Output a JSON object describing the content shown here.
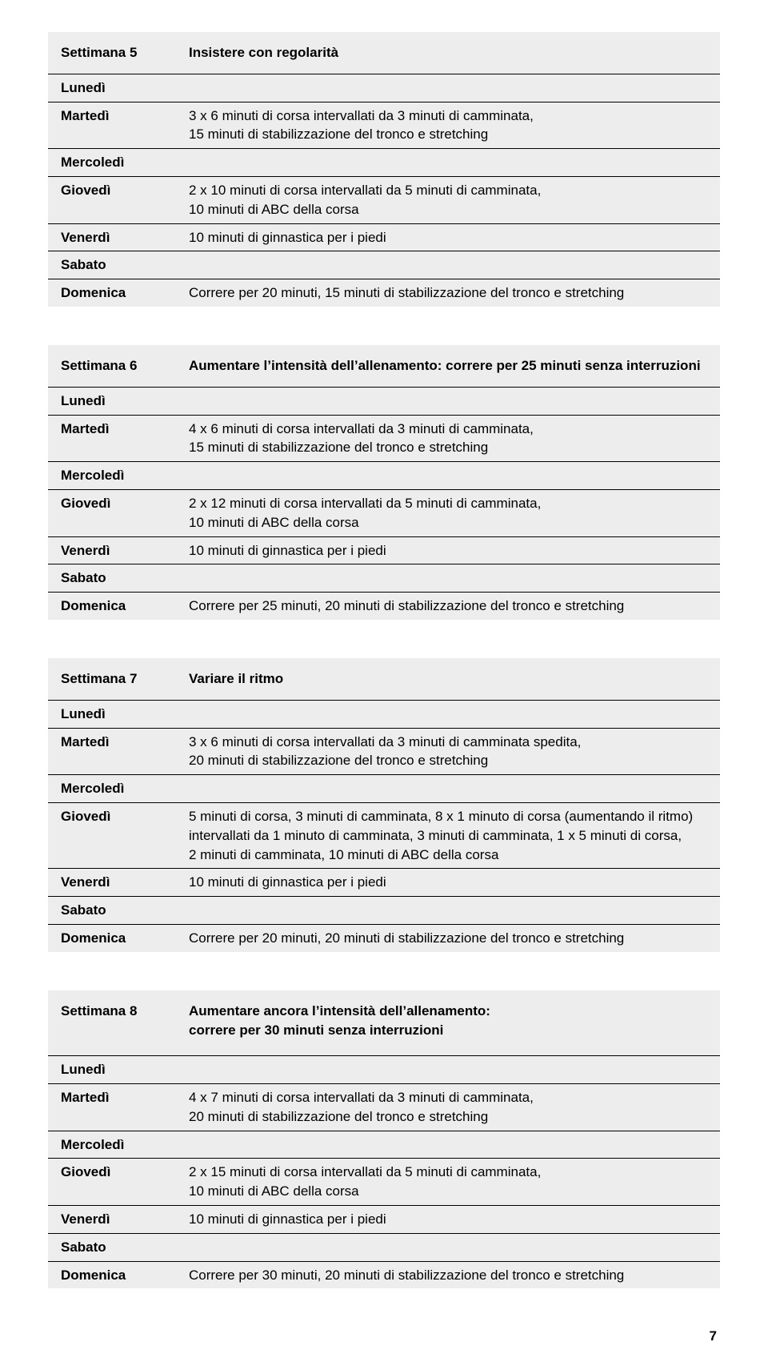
{
  "colors": {
    "background": "#ffffff",
    "block_bg": "#ededed",
    "row_border": "#000000",
    "text": "#000000"
  },
  "typography": {
    "font_family": "Helvetica, Arial, sans-serif",
    "base_fontsize": 17,
    "bold_weight": 700,
    "normal_weight": 400
  },
  "page_number": "7",
  "weeks": [
    {
      "label": "Settimana 5",
      "title": "Insistere con regolarità",
      "days": [
        {
          "name": "Lunedì",
          "content": ""
        },
        {
          "name": "Martedì",
          "content": "3 x 6 minuti di corsa intervallati da 3 minuti di camminata,\n15 minuti di stabilizzazione del tronco e stretching"
        },
        {
          "name": "Mercoledì",
          "content": ""
        },
        {
          "name": "Giovedì",
          "content": "2 x 10 minuti di corsa intervallati da 5 minuti di camminata,\n10 minuti di ABC della corsa"
        },
        {
          "name": "Venerdì",
          "content": "10 minuti di ginnastica per i piedi"
        },
        {
          "name": "Sabato",
          "content": ""
        },
        {
          "name": "Domenica",
          "content": "Correre per 20 minuti, 15 minuti di stabilizzazione del tronco e stretching"
        }
      ]
    },
    {
      "label": "Settimana 6",
      "title": "Aumentare l’intensità dell’allenamento: correre per 25 minuti senza interruzioni",
      "days": [
        {
          "name": "Lunedì",
          "content": ""
        },
        {
          "name": "Martedì",
          "content": "4 x 6 minuti di corsa intervallati da 3 minuti di camminata,\n15 minuti di stabilizzazione del tronco e stretching"
        },
        {
          "name": "Mercoledì",
          "content": ""
        },
        {
          "name": "Giovedì",
          "content": "2 x 12 minuti di corsa intervallati da 5 minuti di camminata,\n10 minuti di ABC della corsa"
        },
        {
          "name": "Venerdì",
          "content": "10 minuti di ginnastica per i piedi"
        },
        {
          "name": "Sabato",
          "content": ""
        },
        {
          "name": "Domenica",
          "content": "Correre per 25 minuti, 20 minuti di stabilizzazione del tronco e stretching"
        }
      ]
    },
    {
      "label": "Settimana 7",
      "title": "Variare il ritmo",
      "days": [
        {
          "name": "Lunedì",
          "content": ""
        },
        {
          "name": "Martedì",
          "content": "3 x 6 minuti di corsa intervallati da 3 minuti di camminata spedita,\n20 minuti di stabilizzazione del tronco e stretching"
        },
        {
          "name": "Mercoledì",
          "content": ""
        },
        {
          "name": "Giovedì",
          "content": "5 minuti di corsa, 3 minuti di camminata, 8 x 1 minuto di corsa (aumentando il ritmo) intervallati da 1 minuto di camminata, 3 minuti di camminata, 1 x 5 minuti di corsa,\n2 minuti di camminata, 10 minuti di ABC della corsa"
        },
        {
          "name": "Venerdì",
          "content": "10 minuti di ginnastica per i piedi"
        },
        {
          "name": "Sabato",
          "content": ""
        },
        {
          "name": "Domenica",
          "content": "Correre per 20 minuti, 20 minuti di stabilizzazione del tronco e stretching"
        }
      ]
    },
    {
      "label": "Settimana 8",
      "title": "Aumentare ancora l’intensità dell’allenamento:\ncorrere per 30 minuti senza interruzioni",
      "days": [
        {
          "name": "Lunedì",
          "content": ""
        },
        {
          "name": "Martedì",
          "content": "4 x 7 minuti di corsa intervallati da 3 minuti di camminata,\n20 minuti di stabilizzazione del tronco e stretching"
        },
        {
          "name": "Mercoledì",
          "content": ""
        },
        {
          "name": "Giovedì",
          "content": "2 x 15 minuti di corsa intervallati da 5 minuti di camminata,\n10 minuti di ABC della corsa"
        },
        {
          "name": "Venerdì",
          "content": "10 minuti di ginnastica per i piedi"
        },
        {
          "name": "Sabato",
          "content": ""
        },
        {
          "name": "Domenica",
          "content": "Correre per 30 minuti, 20 minuti di stabilizzazione del tronco e stretching"
        }
      ]
    }
  ]
}
